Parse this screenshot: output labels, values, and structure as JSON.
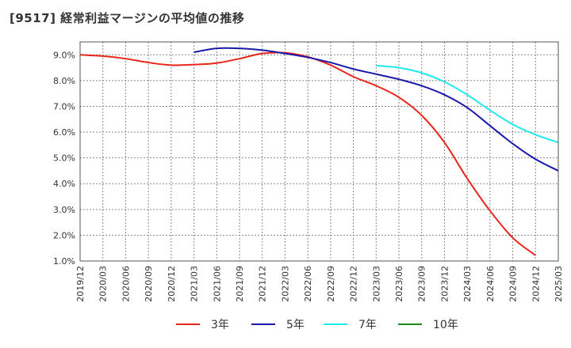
{
  "title": "[9517]  経常利益マージンの平均値の推移",
  "chart_data": {
    "type": "line",
    "title": "[9517]  経常利益マージンの平均値の推移",
    "xlabel": "",
    "ylabel": "",
    "ylim": [
      1.0,
      9.5
    ],
    "y_ticks": [
      1.0,
      2.0,
      3.0,
      4.0,
      5.0,
      6.0,
      7.0,
      8.0,
      9.0
    ],
    "y_tick_labels": [
      "1.0%",
      "2.0%",
      "3.0%",
      "4.0%",
      "5.0%",
      "6.0%",
      "7.0%",
      "8.0%",
      "9.0%"
    ],
    "x_tick_labels": [
      "2019/12",
      "2020/03",
      "2020/06",
      "2020/09",
      "2020/12",
      "2021/03",
      "2021/06",
      "2021/09",
      "2021/12",
      "2022/03",
      "2022/06",
      "2022/09",
      "2022/12",
      "2023/03",
      "2023/06",
      "2023/09",
      "2023/12",
      "2024/03",
      "2024/06",
      "2024/09",
      "2024/12",
      "2025/03"
    ],
    "grid": true,
    "legend_position": "bottom",
    "series": [
      {
        "name": "3年",
        "color": "#e8261c",
        "start_index": 0,
        "values": [
          9.0,
          8.95,
          8.85,
          8.7,
          8.6,
          8.62,
          8.68,
          8.85,
          9.05,
          9.08,
          8.92,
          8.6,
          8.15,
          7.8,
          7.35,
          6.65,
          5.6,
          4.2,
          2.95,
          1.9,
          1.22
        ]
      },
      {
        "name": "5年",
        "color": "#1a1aaa",
        "start_index": 5,
        "values": [
          9.1,
          9.25,
          9.25,
          9.18,
          9.05,
          8.9,
          8.7,
          8.45,
          8.25,
          8.05,
          7.8,
          7.45,
          6.95,
          6.25,
          5.55,
          4.95,
          4.5
        ]
      },
      {
        "name": "7年",
        "color": "#22e8ee",
        "start_index": 13,
        "values": [
          8.58,
          8.5,
          8.3,
          7.95,
          7.45,
          6.85,
          6.3,
          5.9,
          5.6
        ]
      },
      {
        "name": "10年",
        "color": "#1a8a1a",
        "start_index": 0,
        "values": []
      }
    ]
  }
}
